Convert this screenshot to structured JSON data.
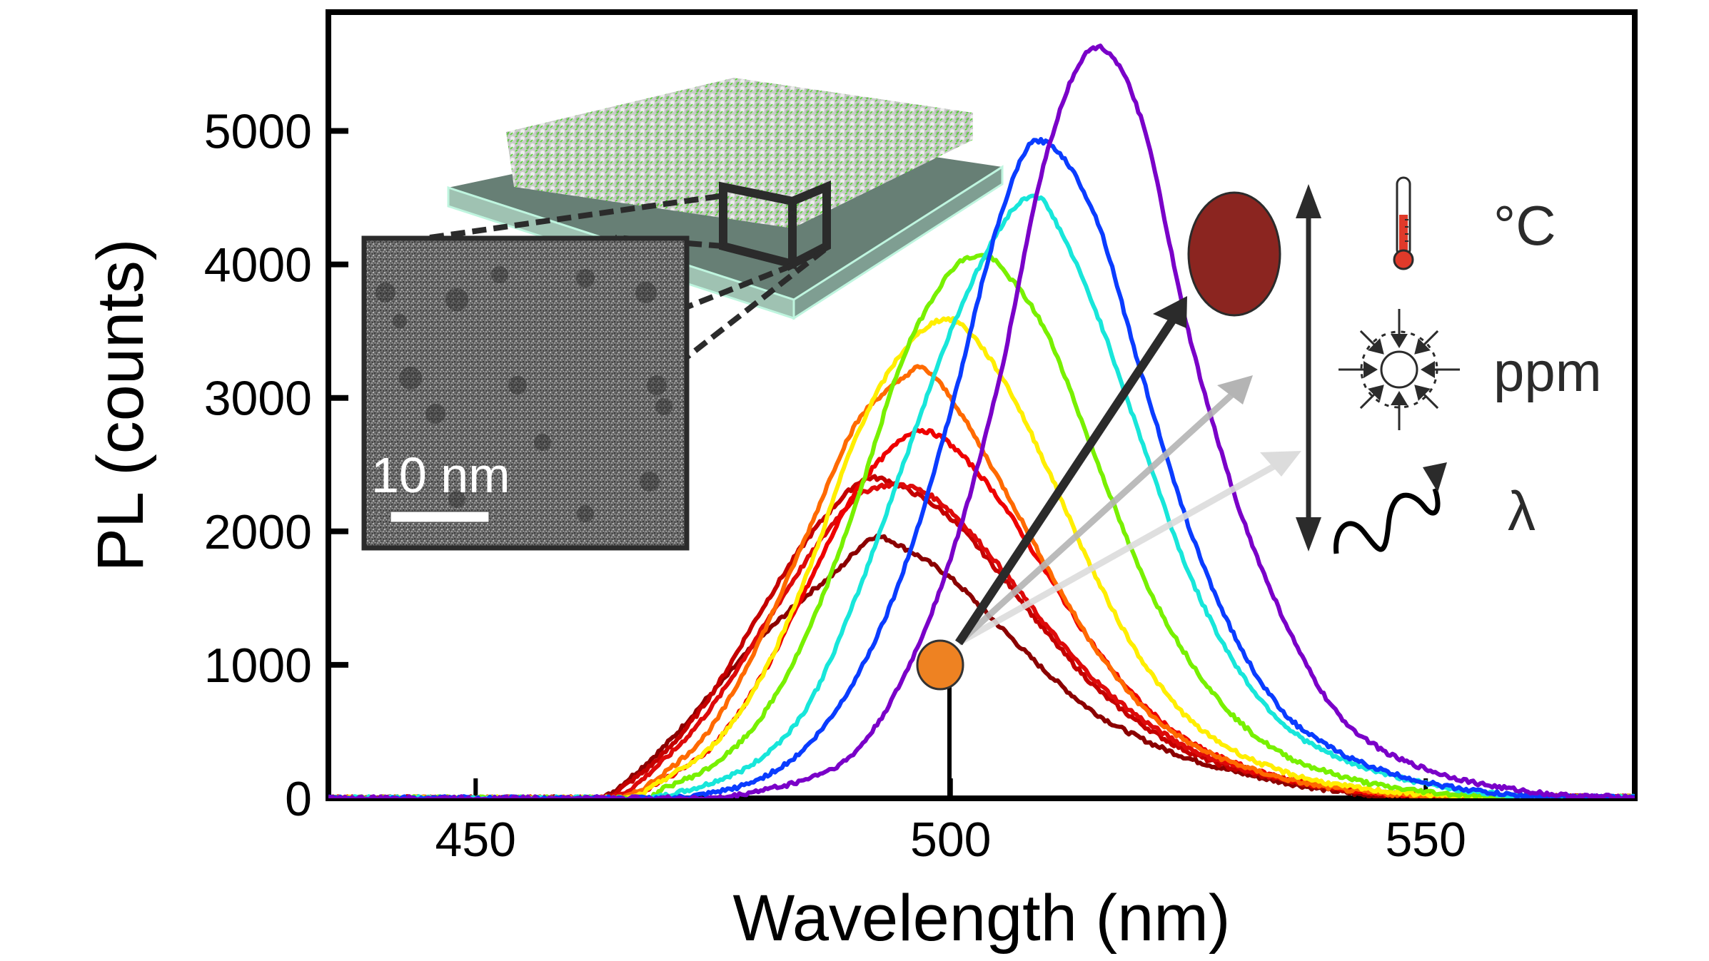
{
  "chart_data": {
    "type": "line",
    "title": "",
    "xlabel": "Wavelength (nm)",
    "ylabel": "PL (counts)",
    "xlim": [
      434.5,
      572
    ],
    "ylim": [
      0,
      5890
    ],
    "xticks": [
      450,
      500,
      550
    ],
    "yticks": [
      0,
      1000,
      2000,
      3000,
      4000,
      5000
    ],
    "xtick_labels": [
      "450",
      "500",
      "550"
    ],
    "ytick_labels": [
      "0",
      "1000",
      "2000",
      "3000",
      "4000",
      "5000"
    ],
    "grid": false,
    "legend": "none",
    "series": [
      {
        "name": "violet",
        "color": "#7a00c8",
        "peak": {
          "x": 515.5,
          "y": 5640
        },
        "x": [
          434.5,
          475,
          480,
          485,
          490,
          495,
          500,
          505,
          510,
          515,
          520,
          525,
          530,
          535,
          540,
          545,
          550,
          555,
          560,
          565,
          572
        ],
        "y": [
          0,
          0,
          60,
          150,
          350,
          900,
          1800,
          3100,
          4800,
          5620,
          5100,
          3500,
          2250,
          1350,
          700,
          380,
          220,
          120,
          60,
          20,
          10
        ]
      },
      {
        "name": "blue",
        "color": "#0a3cff",
        "peak": {
          "x": 509.0,
          "y": 4925
        },
        "x": [
          434.5,
          470,
          475,
          480,
          485,
          490,
          495,
          500,
          505,
          509,
          515,
          520,
          525,
          530,
          535,
          540,
          545,
          550,
          555,
          560,
          565,
          572
        ],
        "y": [
          0,
          0,
          40,
          150,
          400,
          900,
          1700,
          2900,
          4300,
          4925,
          4400,
          3200,
          2050,
          1200,
          650,
          380,
          220,
          120,
          60,
          20,
          10,
          5
        ]
      },
      {
        "name": "cyan",
        "color": "#18e6da",
        "peak": {
          "x": 508.0,
          "y": 4500
        },
        "x": [
          434.5,
          468,
          470,
          475,
          480,
          485,
          490,
          495,
          500,
          505,
          508,
          510,
          515,
          520,
          525,
          530,
          535,
          540,
          545,
          550,
          555,
          560,
          565,
          572
        ],
        "y": [
          0,
          0,
          20,
          120,
          300,
          700,
          1500,
          2500,
          3500,
          4250,
          4500,
          4450,
          3700,
          2700,
          1700,
          1000,
          560,
          330,
          200,
          110,
          50,
          20,
          10,
          5
        ]
      },
      {
        "name": "green",
        "color": "#78f000",
        "peak": {
          "x": 503.2,
          "y": 4063
        },
        "x": [
          434.5,
          468,
          470,
          475,
          480,
          485,
          490,
          495,
          500,
          503,
          505,
          510,
          515,
          520,
          525,
          530,
          535,
          540,
          545,
          550,
          555,
          560,
          572
        ],
        "y": [
          0,
          0,
          80,
          250,
          600,
          1250,
          2200,
          3300,
          3950,
          4063,
          4000,
          3500,
          2600,
          1700,
          1050,
          600,
          330,
          190,
          100,
          50,
          20,
          10,
          5
        ]
      },
      {
        "name": "yellow",
        "color": "#ffee00",
        "peak": {
          "x": 500.1,
          "y": 3587
        },
        "x": [
          434.5,
          466,
          470,
          475,
          480,
          485,
          490,
          495,
          500,
          505,
          510,
          515,
          520,
          525,
          530,
          535,
          540,
          545,
          550,
          555,
          572
        ],
        "y": [
          0,
          0,
          150,
          400,
          900,
          1700,
          2700,
          3350,
          3587,
          3200,
          2500,
          1700,
          1050,
          600,
          350,
          200,
          110,
          60,
          30,
          10,
          5
        ]
      },
      {
        "name": "orange",
        "color": "#ff6a00",
        "peak": {
          "x": 497.0,
          "y": 3223
        },
        "x": [
          434.5,
          465,
          470,
          475,
          480,
          485,
          490,
          495,
          497,
          500,
          505,
          510,
          515,
          520,
          525,
          530,
          535,
          540,
          545,
          550,
          572
        ],
        "y": [
          0,
          0,
          200,
          550,
          1200,
          2000,
          2800,
          3150,
          3223,
          3000,
          2400,
          1750,
          1150,
          700,
          420,
          260,
          150,
          80,
          40,
          20,
          5
        ]
      },
      {
        "name": "red",
        "color": "#ee0000",
        "peak": {
          "x": 497.2,
          "y": 2757
        },
        "x": [
          434.5,
          465,
          470,
          475,
          480,
          485,
          490,
          495,
          497,
          500,
          505,
          510,
          515,
          520,
          525,
          530,
          535,
          540,
          545,
          550,
          572
        ],
        "y": [
          0,
          0,
          150,
          400,
          900,
          1600,
          2300,
          2700,
          2757,
          2650,
          2250,
          1700,
          1150,
          720,
          430,
          260,
          150,
          80,
          40,
          20,
          5
        ]
      },
      {
        "name": "red-2",
        "color": "#dd0a0a",
        "peak": {
          "x": 494.0,
          "y": 2350
        },
        "x": [
          434.5,
          464,
          470,
          475,
          480,
          485,
          490,
          494,
          497,
          500,
          505,
          510,
          515,
          520,
          525,
          530,
          535,
          540,
          545,
          550,
          572
        ],
        "y": [
          0,
          0,
          300,
          700,
          1250,
          1800,
          2250,
          2350,
          2300,
          2150,
          1750,
          1300,
          900,
          600,
          380,
          240,
          150,
          90,
          40,
          20,
          5
        ]
      },
      {
        "name": "crimson",
        "color": "#c40000",
        "peak": {
          "x": 492.0,
          "y": 2400
        },
        "x": [
          434.5,
          463,
          465,
          470,
          475,
          480,
          485,
          490,
          492,
          495,
          500,
          505,
          510,
          515,
          520,
          525,
          530,
          535,
          540,
          545,
          550,
          572
        ],
        "y": [
          0,
          0,
          60,
          350,
          800,
          1400,
          1950,
          2350,
          2400,
          2330,
          2100,
          1700,
          1250,
          850,
          560,
          350,
          220,
          140,
          80,
          40,
          20,
          5
        ]
      },
      {
        "name": "maroon",
        "color": "#8b0000",
        "peak": {
          "x": 492.5,
          "y": 1960
        },
        "x": [
          434.5,
          463,
          465,
          470,
          475,
          480,
          485,
          488,
          490,
          492,
          495,
          500,
          505,
          510,
          515,
          520,
          525,
          530,
          535,
          540,
          545,
          572
        ],
        "y": [
          0,
          0,
          80,
          400,
          800,
          1200,
          1530,
          1700,
          1850,
          1960,
          1880,
          1650,
          1300,
          950,
          650,
          450,
          300,
          200,
          120,
          60,
          20,
          5
        ]
      }
    ],
    "annotations": [
      {
        "type": "marker",
        "label": "start-state",
        "x": 499.3,
        "y": 335,
        "color": "#ee8222"
      },
      {
        "type": "marker",
        "label": "end-state",
        "color": "#8b2520"
      },
      {
        "type": "arrow",
        "label": "temperature-arrow",
        "color": "#2b2b2b"
      },
      {
        "type": "arrow",
        "label": "concentration-arrow",
        "color": "#b4b4b4"
      },
      {
        "type": "arrow",
        "label": "wavelength-arrow",
        "color": "#dcdcdc"
      }
    ]
  },
  "inset": {
    "scale_bar_label": "10 nm",
    "substrate_color": "#6e8a80",
    "film_color": "#7ee050"
  },
  "legend_panel": {
    "items": [
      {
        "icon": "thermometer-icon",
        "label": "°C"
      },
      {
        "icon": "compression-icon",
        "label": "ppm"
      },
      {
        "icon": "wave-photon-icon",
        "label": "λ"
      }
    ]
  }
}
